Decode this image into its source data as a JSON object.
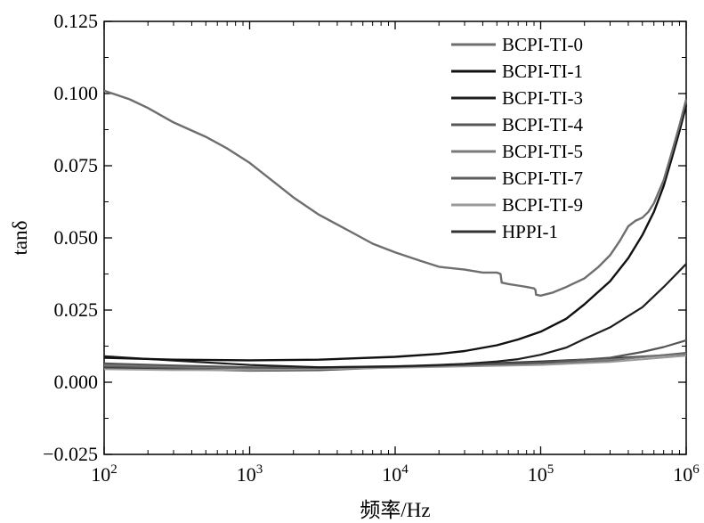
{
  "chart_data": {
    "type": "line",
    "title": "",
    "xlabel": "频率/Hz",
    "ylabel": "tanδ",
    "xscale": "log",
    "xlim": [
      100,
      1000000
    ],
    "ylim": [
      -0.025,
      0.125
    ],
    "grid": false,
    "legend_position": "top-right",
    "x_ticks": [
      {
        "base": "10",
        "exp": "2",
        "value": 100
      },
      {
        "base": "10",
        "exp": "3",
        "value": 1000
      },
      {
        "base": "10",
        "exp": "4",
        "value": 10000
      },
      {
        "base": "10",
        "exp": "5",
        "value": 100000
      },
      {
        "base": "10",
        "exp": "6",
        "value": 1000000
      }
    ],
    "y_ticks": [
      {
        "label": "0.125",
        "value": 0.125
      },
      {
        "label": "0.100",
        "value": 0.1
      },
      {
        "label": "0.075",
        "value": 0.075
      },
      {
        "label": "0.050",
        "value": 0.05
      },
      {
        "label": "0.025",
        "value": 0.025
      },
      {
        "label": "0.000",
        "value": 0.0
      },
      {
        "label": "−0.025",
        "value": -0.025
      }
    ],
    "series": [
      {
        "name": "BCPI-TI-0",
        "color": "#6e6e6e",
        "width": 2.4,
        "x": [
          100,
          150,
          200,
          300,
          500,
          700,
          1000,
          1500,
          2000,
          3000,
          5000,
          7000,
          10000,
          15000,
          20000,
          30000,
          40000,
          50000,
          53000,
          54000,
          60000,
          70000,
          80000,
          90000,
          92000,
          93000,
          100000,
          120000,
          150000,
          200000,
          250000,
          300000,
          350000,
          400000,
          450000,
          500000,
          550000,
          600000,
          700000,
          800000,
          900000,
          1000000
        ],
        "y": [
          0.101,
          0.098,
          0.095,
          0.09,
          0.085,
          0.081,
          0.076,
          0.069,
          0.064,
          0.058,
          0.052,
          0.048,
          0.045,
          0.042,
          0.04,
          0.039,
          0.038,
          0.038,
          0.0375,
          0.0345,
          0.034,
          0.0335,
          0.033,
          0.0325,
          0.032,
          0.0303,
          0.03,
          0.031,
          0.033,
          0.036,
          0.04,
          0.044,
          0.049,
          0.054,
          0.056,
          0.057,
          0.059,
          0.062,
          0.07,
          0.08,
          0.089,
          0.098
        ]
      },
      {
        "name": "BCPI-TI-1",
        "color": "#111111",
        "width": 2.4,
        "x": [
          100,
          300,
          1000,
          3000,
          10000,
          20000,
          30000,
          50000,
          70000,
          100000,
          150000,
          200000,
          300000,
          400000,
          500000,
          600000,
          700000,
          800000,
          900000,
          1000000
        ],
        "y": [
          0.0085,
          0.0078,
          0.0076,
          0.0078,
          0.0088,
          0.0098,
          0.0108,
          0.0128,
          0.0148,
          0.0175,
          0.022,
          0.027,
          0.035,
          0.043,
          0.051,
          0.059,
          0.068,
          0.078,
          0.087,
          0.096
        ]
      },
      {
        "name": "BCPI-TI-3",
        "color": "#1e1e1e",
        "width": 2.2,
        "x": [
          100,
          300,
          1000,
          3000,
          10000,
          20000,
          30000,
          50000,
          70000,
          100000,
          150000,
          200000,
          300000,
          500000,
          700000,
          1000000
        ],
        "y": [
          0.009,
          0.0075,
          0.006,
          0.0052,
          0.0055,
          0.006,
          0.0064,
          0.0072,
          0.008,
          0.0095,
          0.012,
          0.015,
          0.019,
          0.026,
          0.033,
          0.041
        ]
      },
      {
        "name": "BCPI-TI-4",
        "color": "#555555",
        "width": 2.2,
        "x": [
          100,
          300,
          1000,
          3000,
          10000,
          30000,
          100000,
          300000,
          500000,
          700000,
          1000000
        ],
        "y": [
          0.0065,
          0.0058,
          0.0052,
          0.005,
          0.0054,
          0.006,
          0.0068,
          0.0085,
          0.0105,
          0.0122,
          0.0145
        ]
      },
      {
        "name": "BCPI-TI-5",
        "color": "#7a7a7a",
        "width": 2.0,
        "x": [
          100,
          300,
          1000,
          3000,
          10000,
          30000,
          100000,
          300000,
          1000000
        ],
        "y": [
          0.006,
          0.0055,
          0.005,
          0.0052,
          0.0056,
          0.006,
          0.0068,
          0.0078,
          0.0098
        ]
      },
      {
        "name": "BCPI-TI-7",
        "color": "#5c5c5c",
        "width": 2.0,
        "x": [
          100,
          300,
          1000,
          3000,
          10000,
          30000,
          100000,
          300000,
          1000000
        ],
        "y": [
          0.0055,
          0.005,
          0.0048,
          0.005,
          0.0055,
          0.006,
          0.0066,
          0.0076,
          0.0102
        ]
      },
      {
        "name": "BCPI-TI-9",
        "color": "#9a9a9a",
        "width": 2.0,
        "x": [
          100,
          300,
          1000,
          3000,
          10000,
          30000,
          100000,
          300000,
          1000000
        ],
        "y": [
          0.0045,
          0.0042,
          0.0042,
          0.0045,
          0.005,
          0.0055,
          0.006,
          0.007,
          0.0092
        ]
      },
      {
        "name": "HPPI-1",
        "color": "#333333",
        "width": 2.2,
        "x": [
          100,
          300,
          1000,
          3000,
          10000,
          30000,
          100000,
          300000,
          1000000
        ],
        "y": [
          0.005,
          0.0045,
          0.004,
          0.0042,
          0.0052,
          0.0062,
          0.0072,
          0.0082,
          0.0098
        ]
      }
    ]
  }
}
